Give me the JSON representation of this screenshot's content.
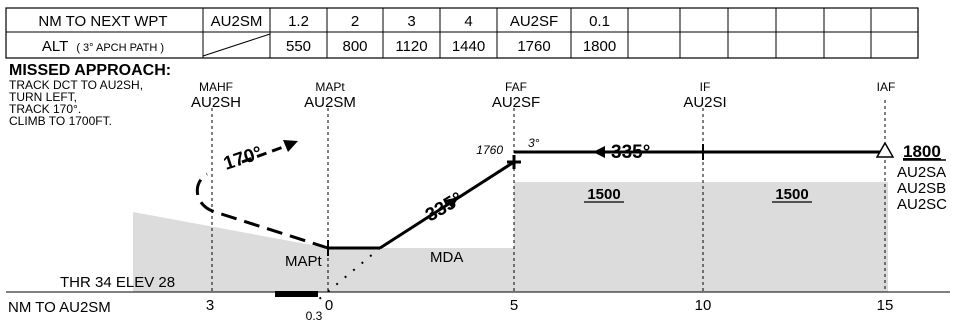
{
  "table": {
    "row1_header": "NM TO NEXT WPT",
    "row1_values": [
      "AU2SM",
      "1.2",
      "2",
      "3",
      "4",
      "AU2SF",
      "0.1",
      "",
      "",
      "",
      "",
      "",
      ""
    ],
    "row2_header_main": "ALT",
    "row2_header_sub": "( 3° APCH PATH )",
    "row2_values": [
      "",
      "550",
      "800",
      "1120",
      "1440",
      "1760",
      "1800",
      "",
      "",
      "",
      "",
      "",
      ""
    ]
  },
  "missed_approach": {
    "title": "MISSED APPROACH:",
    "lines": [
      "TRACK DCT TO AU2SH,",
      "TURN LEFT,",
      "TRACK 170°.",
      "CLIMB TO 1700FT."
    ]
  },
  "fixes": [
    {
      "role": "MAHF",
      "name": "AU2SH"
    },
    {
      "role": "MAPt",
      "name": "AU2SM"
    },
    {
      "role": "FAF",
      "name": "AU2SF"
    },
    {
      "role": "IF",
      "name": "AU2SI"
    },
    {
      "role": "IAF",
      "name": ""
    }
  ],
  "profile": {
    "track_missed": "170°",
    "track_final": "335°",
    "track_intermediate": "335°",
    "faf_alt": "1760",
    "glide_angle": "3°",
    "iaf_alt": "1800",
    "iaf_fixes": [
      "AU2SA",
      "AU2SB",
      "AU2SC"
    ],
    "mda_label": "MDA",
    "mapt_label": "MAPt",
    "seg_alt_1": "1500",
    "seg_alt_2": "1500",
    "threshold": "THR 34 ELEV 28"
  },
  "axis": {
    "label": "NM TO AU2SM",
    "ticks": [
      "3",
      "0",
      "5",
      "10",
      "15"
    ],
    "offset_label": "0.3"
  }
}
